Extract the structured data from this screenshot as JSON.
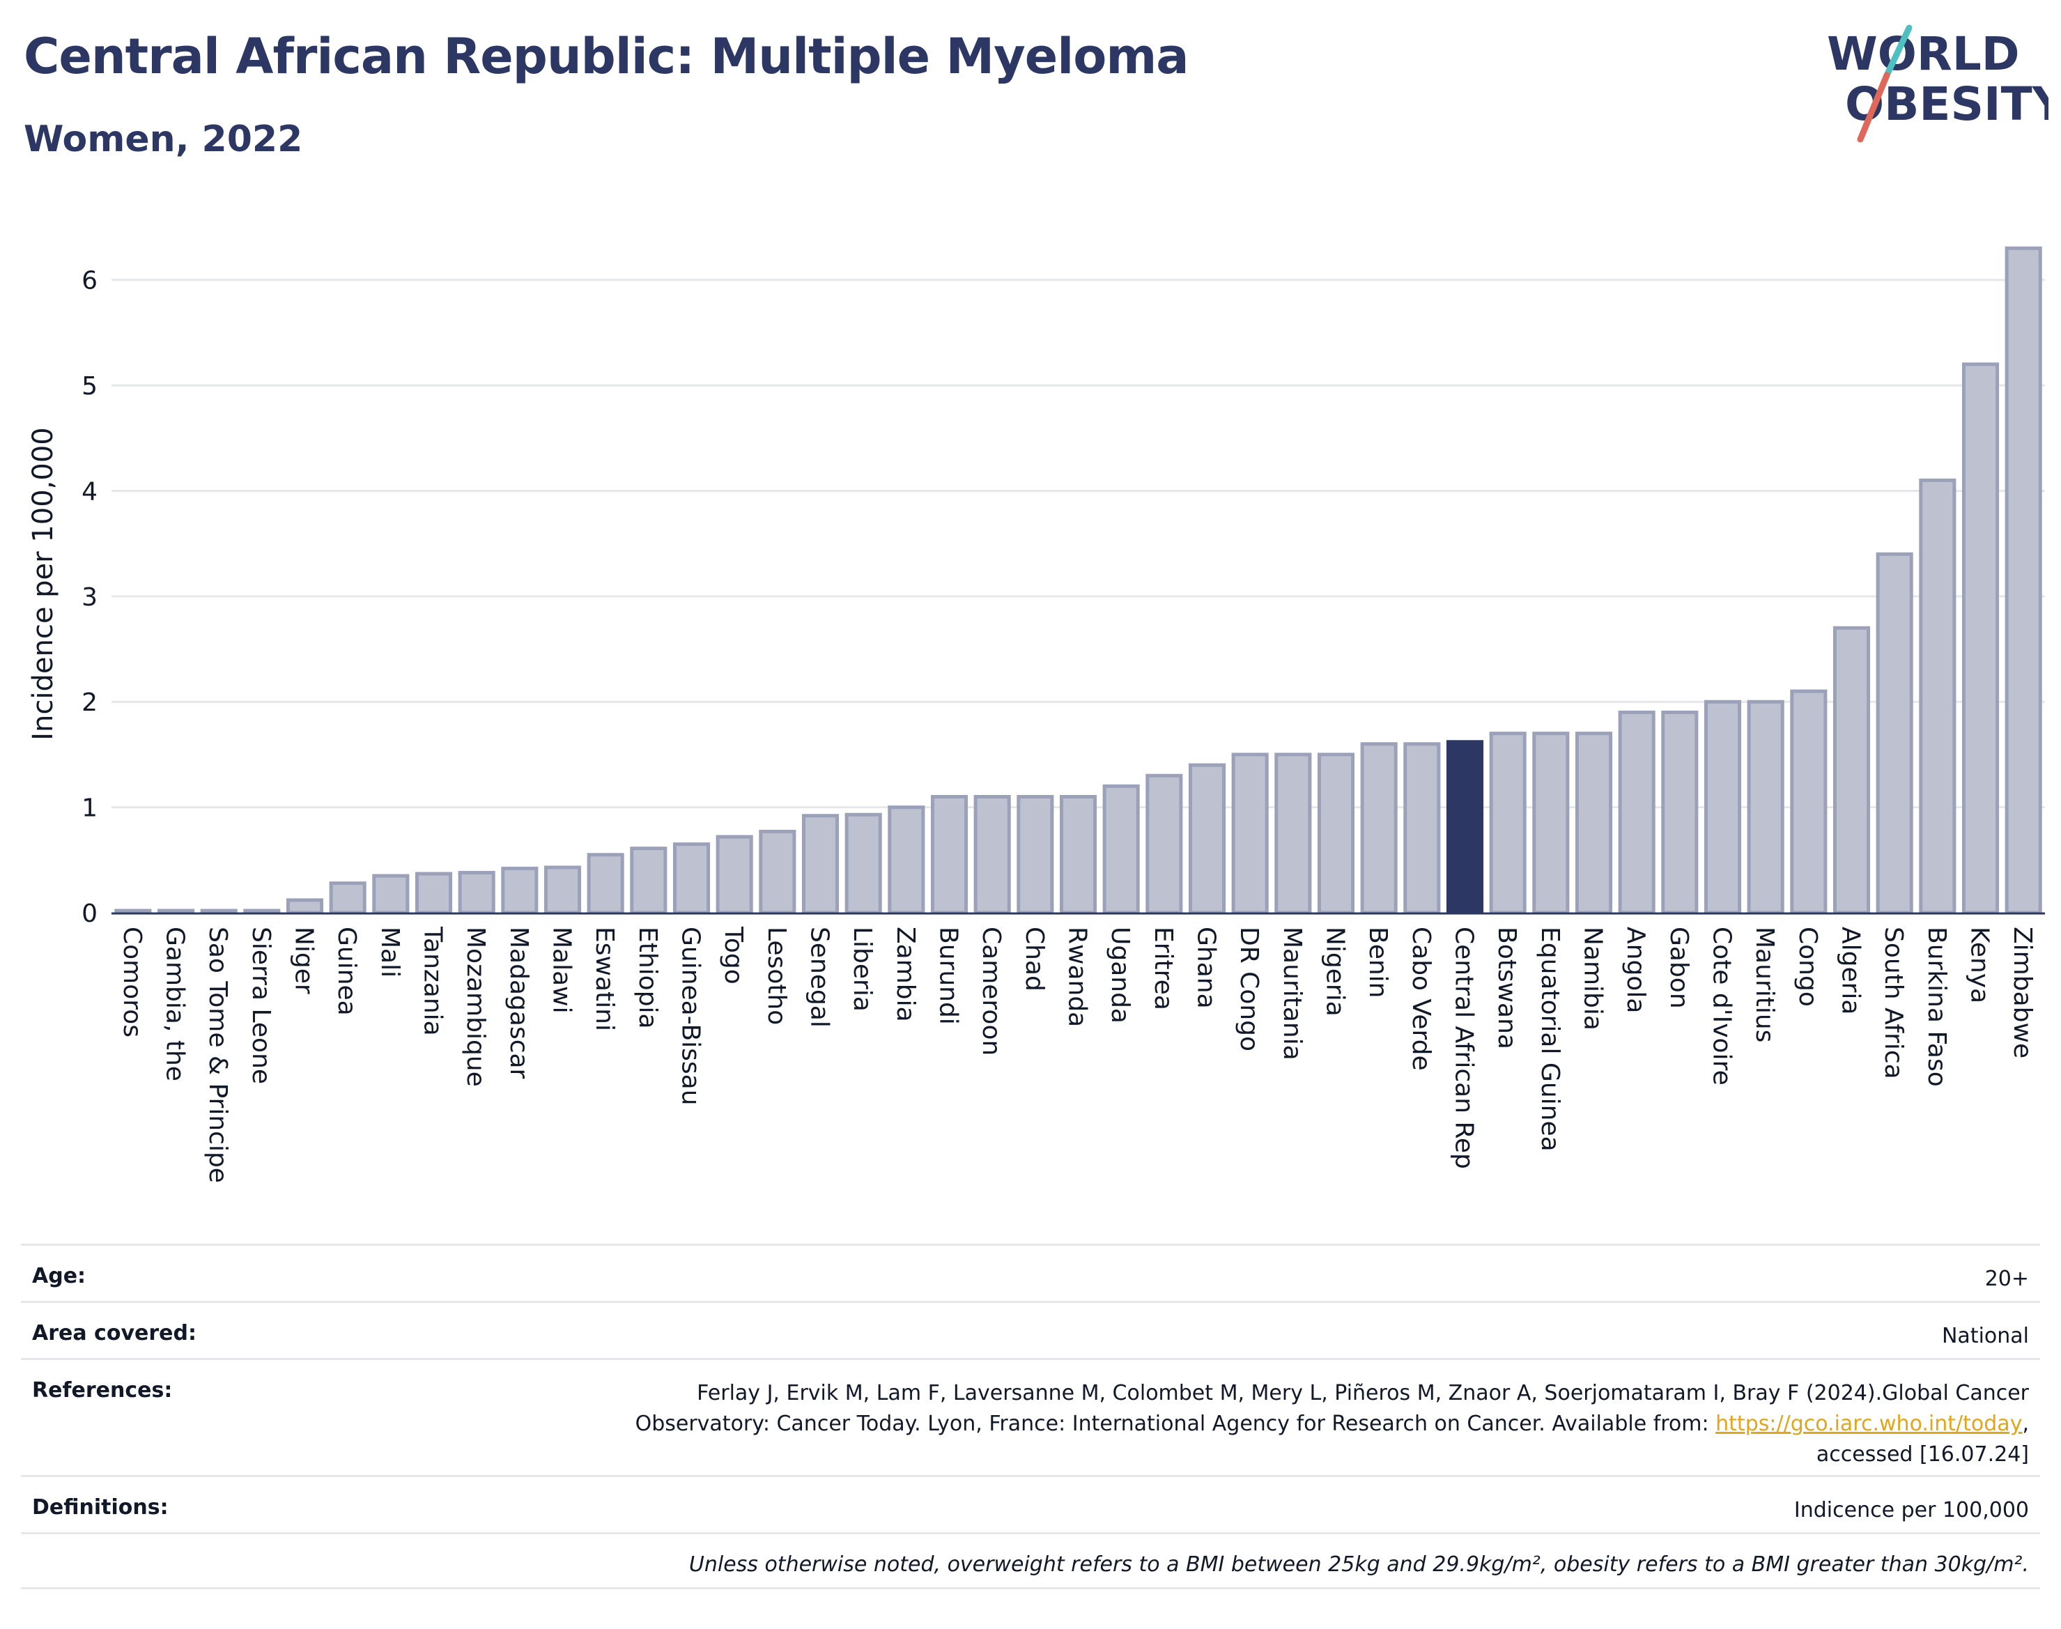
{
  "header": {
    "title": "Central African Republic: Multiple Myeloma",
    "subtitle": "Women, 2022"
  },
  "logo": {
    "line1": "WORLD",
    "line2": "OBESITY",
    "colors": {
      "text": "#2c3763",
      "slash_red": "#e0685a",
      "slash_teal": "#4fc0c0"
    }
  },
  "colors": {
    "bar_fill": "#bec2d0",
    "bar_stroke": "#9ba1b8",
    "highlight_fill": "#2c3763",
    "grid": "#e5e7eb",
    "axis_text": "#111827"
  },
  "chart_data": {
    "type": "bar",
    "title": "Central African Republic: Multiple Myeloma",
    "subtitle": "Women, 2022",
    "ylabel": "Incidence per 100,000",
    "xlabel": "",
    "ylim": [
      0,
      6.5
    ],
    "yticks": [
      0,
      1,
      2,
      3,
      4,
      5,
      6
    ],
    "grid": true,
    "highlight": "Central African Rep",
    "categories": [
      "Comoros",
      "Gambia, the",
      "Sao Tome & Principe",
      "Sierra Leone",
      "Niger",
      "Guinea",
      "Mali",
      "Tanzania",
      "Mozambique",
      "Madagascar",
      "Malawi",
      "Eswatini",
      "Ethiopia",
      "Guinea-Bissau",
      "Togo",
      "Lesotho",
      "Senegal",
      "Liberia",
      "Zambia",
      "Burundi",
      "Cameroon",
      "Chad",
      "Rwanda",
      "Uganda",
      "Eritrea",
      "Ghana",
      "DR Congo",
      "Mauritania",
      "Nigeria",
      "Benin",
      "Cabo Verde",
      "Central African Rep",
      "Botswana",
      "Equatorial Guinea",
      "Namibia",
      "Angola",
      "Gabon",
      "Cote d'Ivoire",
      "Mauritius",
      "Congo",
      "Algeria",
      "South Africa",
      "Burkina Faso",
      "Kenya",
      "Zimbabwe"
    ],
    "values": [
      0.02,
      0.02,
      0.02,
      0.02,
      0.12,
      0.28,
      0.35,
      0.37,
      0.38,
      0.42,
      0.43,
      0.55,
      0.61,
      0.65,
      0.72,
      0.77,
      0.92,
      0.93,
      1.0,
      1.1,
      1.1,
      1.1,
      1.1,
      1.2,
      1.3,
      1.4,
      1.5,
      1.5,
      1.5,
      1.6,
      1.6,
      1.62,
      1.7,
      1.7,
      1.7,
      1.9,
      1.9,
      2.0,
      2.0,
      2.1,
      2.7,
      3.4,
      4.1,
      5.2,
      6.3
    ]
  },
  "info": {
    "age_label": "Age:",
    "age_value": "20+",
    "area_label": "Area covered:",
    "area_value": "National",
    "references_label": "References:",
    "references_line1": "Ferlay J, Ervik M, Lam F, Laversanne M, Colombet M, Mery L, Piñeros M, Znaor A, Soerjomataram I, Bray F (2024).Global Cancer",
    "references_line2": "Observatory: Cancer Today. Lyon, France: International Agency for Research on Cancer. Available from: ",
    "references_link": "https://gco.iarc.who.int/today",
    "references_line3": "accessed [16.07.24]",
    "definitions_label": "Definitions:",
    "definitions_value": "Indicence per 100,000",
    "note": "Unless otherwise noted, overweight refers to a BMI between 25kg and 29.9kg/m², obesity refers to a BMI greater than 30kg/m²."
  }
}
